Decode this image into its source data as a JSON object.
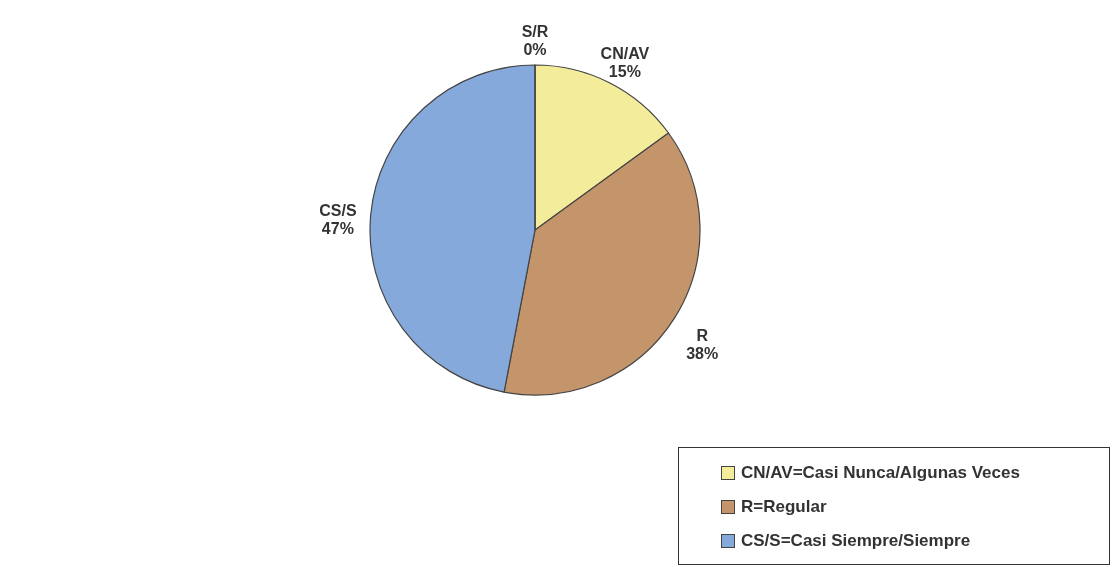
{
  "chart_data": {
    "type": "pie",
    "categories": [
      "CN/AV",
      "R",
      "CS/S",
      "S/R"
    ],
    "values": [
      15,
      38,
      47,
      0
    ],
    "value_labels": [
      "15%",
      "38%",
      "47%",
      "0%"
    ],
    "colors": [
      "#f3ec9a",
      "#c4956a",
      "#86a9dc",
      "#9a9a8a"
    ],
    "annotations": [
      "CN/AV=Casi Nunca/Algunas Veces",
      "R=Regular",
      "CS/S=Casi Siempre/Siempre"
    ]
  }
}
